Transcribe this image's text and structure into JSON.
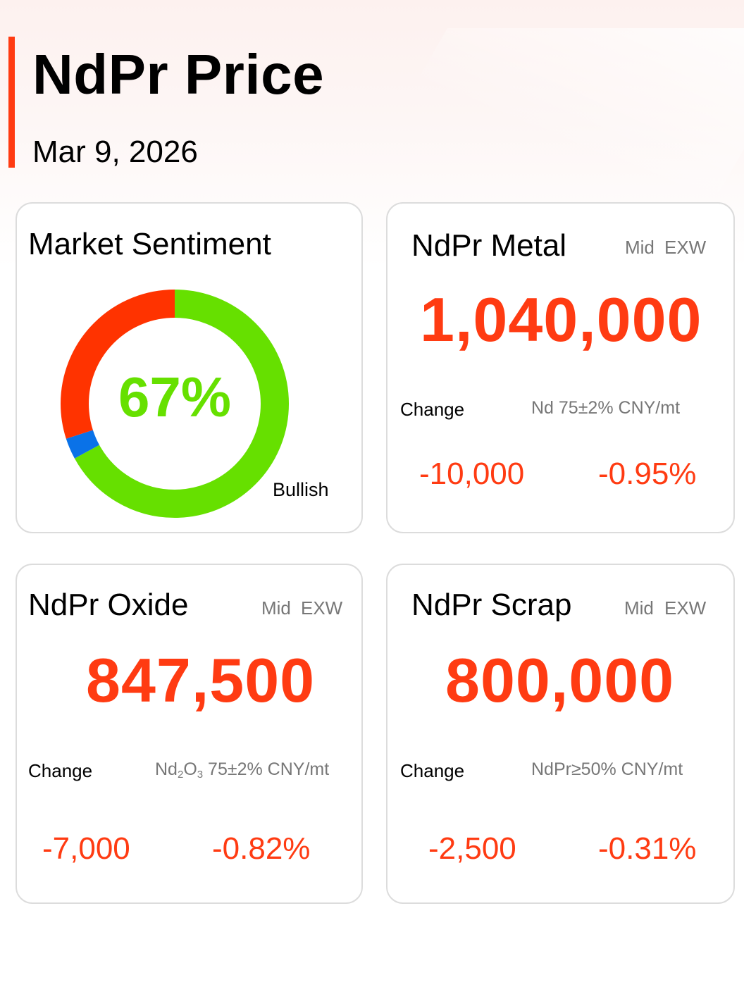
{
  "header": {
    "title": "NdPr Price",
    "date": "Mar 9, 2026"
  },
  "colors": {
    "accent": "#ff3b12",
    "bullish": "#66e000",
    "bearish": "#ff3300",
    "neutral": "#0a72e8"
  },
  "sentiment": {
    "title": "Market Sentiment",
    "bullish_pct": "67%",
    "caption": "Bullish",
    "segments": [
      {
        "label": "Bullish",
        "share": 0.67,
        "color": "#66e000"
      },
      {
        "label": "Neutral",
        "share": 0.03,
        "color": "#0a72e8"
      },
      {
        "label": "Bearish",
        "share": 0.3,
        "color": "#ff3300"
      }
    ]
  },
  "metal": {
    "title": "NdPr Metal",
    "tag_mid": "Mid",
    "tag_exw": "EXW",
    "price": "1,040,000",
    "change_label": "Change",
    "spec": "Nd 75±2% CNY/mt",
    "change_abs": "-10,000",
    "change_pct": "-0.95%"
  },
  "oxide": {
    "title": "NdPr Oxide",
    "tag_mid": "Mid",
    "tag_exw": "EXW",
    "price": "847,500",
    "change_label": "Change",
    "spec_a": "Nd",
    "spec_sub1": "2",
    "spec_b": "O",
    "spec_sub2": "3",
    "spec_c": " 75±2% CNY/mt",
    "change_abs": "-7,000",
    "change_pct": "-0.82%"
  },
  "scrap": {
    "title": "NdPr Scrap",
    "tag_mid": "Mid",
    "tag_exw": "EXW",
    "price": "800,000",
    "change_label": "Change",
    "spec": "NdPr≥50% CNY/mt",
    "change_abs": "-2,500",
    "change_pct": "-0.31%"
  }
}
